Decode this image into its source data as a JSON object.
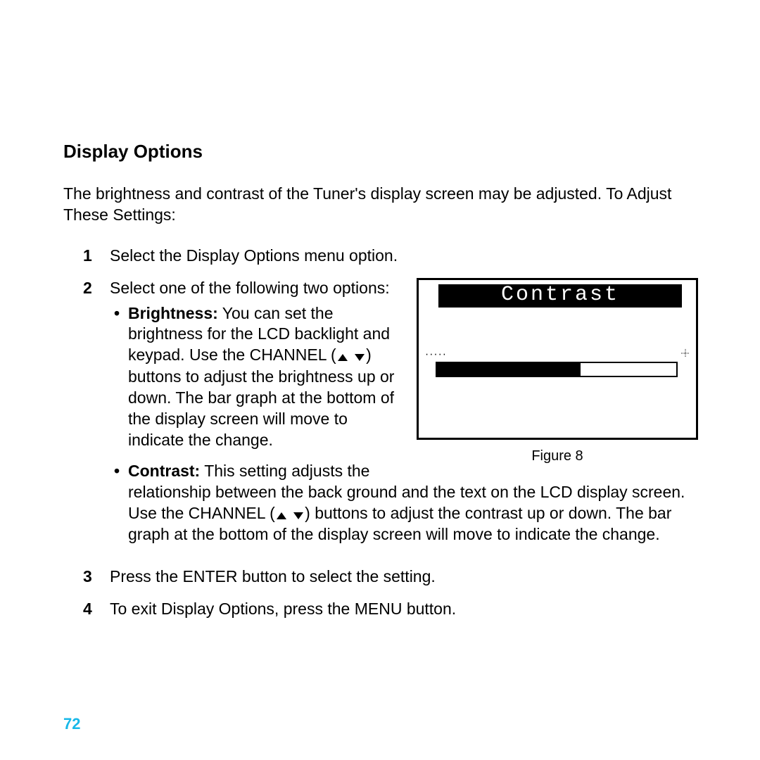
{
  "heading": "Display Options",
  "intro": "The brightness and contrast of the Tuner's display screen may be adjusted. To Adjust These Settings:",
  "steps": {
    "s1": {
      "num": "1",
      "text": "Select the Display Options menu option."
    },
    "s2": {
      "num": "2",
      "text": "Select one of the following two options:"
    },
    "s3": {
      "num": "3",
      "text": "Press the ENTER button to select the setting."
    },
    "s4": {
      "num": "4",
      "text": "To exit Display Options, press the MENU button."
    }
  },
  "bullets": {
    "brightness": {
      "label": "Brightness:",
      "pre": " You can set the brightness for the LCD backlight and keypad. Use the CHANNEL (",
      "post": ") buttons to adjust the brightness up or down. The bar graph at the bottom of the display screen will move to indicate the change."
    },
    "contrast": {
      "label": "Contrast:",
      "pre": " This setting adjusts the relationship between the back ground and the text on the LCD display screen. Use the CHANNEL (",
      "post": ") buttons to adjust the contrast up or down. The bar graph at the bottom of the display screen will move to indicate the change."
    }
  },
  "figure": {
    "title": "Contrast",
    "caption": "Figure 8",
    "bar_fill_percent": 60,
    "colors": {
      "frame": "#000000",
      "title_bg": "#000000",
      "title_fg": "#ffffff",
      "bar_border": "#000000",
      "bar_fill": "#000000",
      "background": "#ffffff"
    }
  },
  "page_number": "72",
  "page_number_color": "#18b8e8",
  "icons": {
    "up_triangle": "▴",
    "down_triangle": "▾"
  }
}
